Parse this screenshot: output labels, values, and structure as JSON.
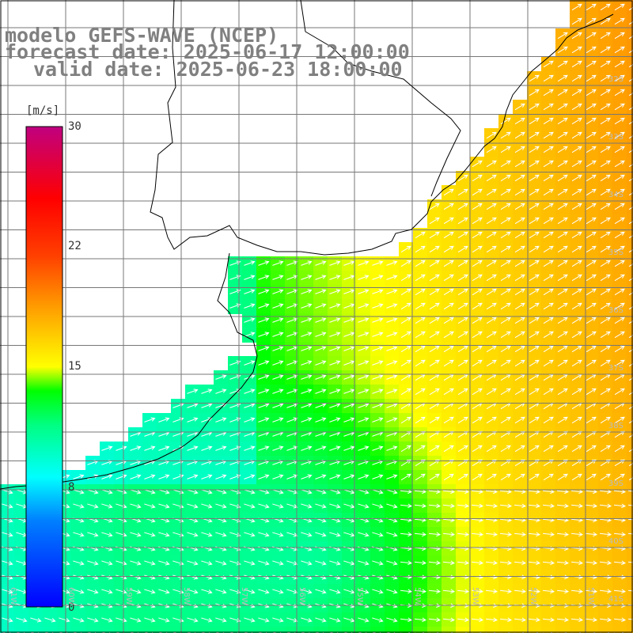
{
  "header": {
    "line1": "modelo GEFS-WAVE (NCEP)",
    "line2": "forecast date: 2025-06-17 12:00:00",
    "line3": "valid date: 2025-06-23 18:00:00"
  },
  "colorbar": {
    "unit": "[m/s]",
    "ticks": [
      "30",
      "22",
      "15",
      "8",
      "0"
    ],
    "tick_values": [
      30,
      22,
      15,
      8,
      0
    ],
    "min": 0,
    "max": 30,
    "colors": [
      "#0000ff",
      "#00b8ff",
      "#00ffff",
      "#00ff80",
      "#00ff00",
      "#80ff00",
      "#ffff00",
      "#ffa000",
      "#ff4000",
      "#ff0000",
      "#c00060"
    ]
  },
  "axes": {
    "lon_labels": [
      "61W",
      "60W",
      "59W",
      "58W",
      "57W",
      "56W",
      "55W",
      "54W",
      "53W",
      "52W",
      "51W"
    ],
    "lat_labels": [
      "32S",
      "33S",
      "34S",
      "35S",
      "36S",
      "37S",
      "38S",
      "39S",
      "40S",
      "41S"
    ]
  },
  "field": {
    "description": "wind speed and direction arrows over ocean",
    "land_color": "#ffffff",
    "grid_color": "#777777"
  }
}
